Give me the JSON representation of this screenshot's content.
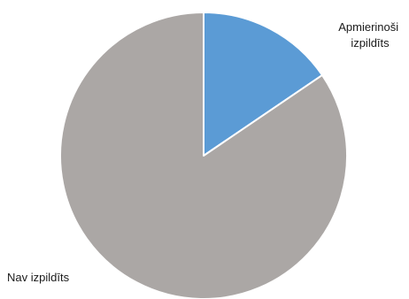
{
  "chart_data": {
    "type": "pie",
    "slices": [
      {
        "label_lines": [
          "Apmierinoši",
          "izpildīts"
        ],
        "value": 15.5,
        "color": "#5b9bd5"
      },
      {
        "label_lines": [
          "Nav izpildīts"
        ],
        "value": 84.5,
        "color": "#aba7a5"
      }
    ],
    "start_angle": "12 o'clock",
    "direction": "clockwise",
    "legend": "none"
  }
}
